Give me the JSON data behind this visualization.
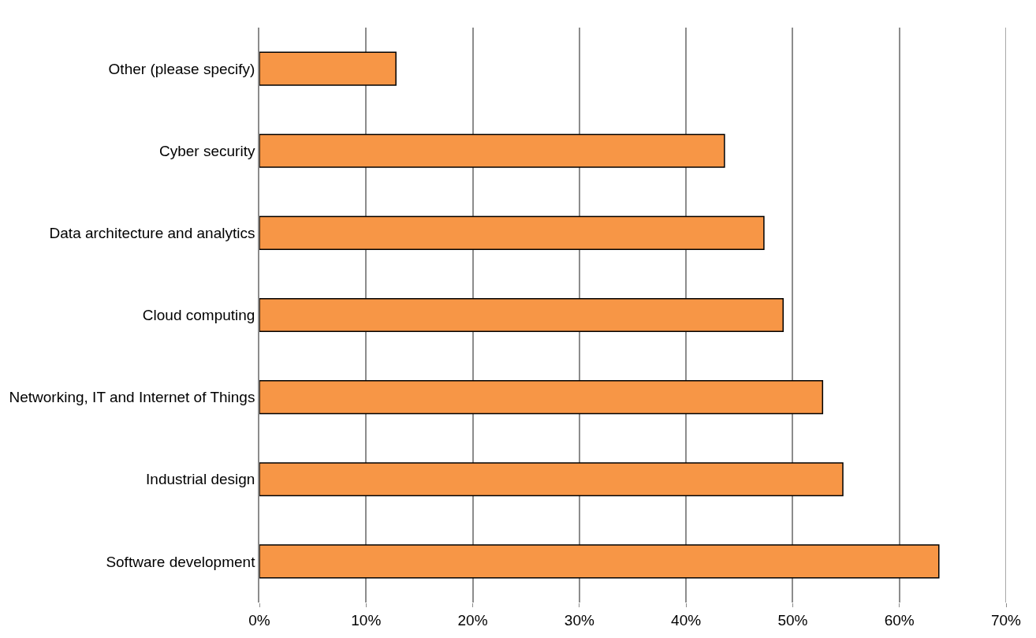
{
  "chart_data": {
    "type": "bar",
    "orientation": "horizontal",
    "categories": [
      "Other (please specify)",
      "Cyber security",
      "Data architecture and analytics",
      "Cloud computing",
      "Networking, IT and Internet of Things",
      "Industrial design",
      "Software development"
    ],
    "values": [
      12.8,
      43.6,
      47.3,
      49.1,
      52.8,
      54.7,
      63.7
    ],
    "color": "#f79646",
    "xlim": [
      0,
      70
    ],
    "xticks": [
      {
        "value": 0,
        "label": "0%"
      },
      {
        "value": 10,
        "label": "10%"
      },
      {
        "value": 20,
        "label": "20%"
      },
      {
        "value": 30,
        "label": "30%"
      },
      {
        "value": 40,
        "label": "40%"
      },
      {
        "value": 50,
        "label": "50%"
      },
      {
        "value": 60,
        "label": "60%"
      },
      {
        "value": 70,
        "label": "70%"
      }
    ],
    "grid": "x"
  }
}
